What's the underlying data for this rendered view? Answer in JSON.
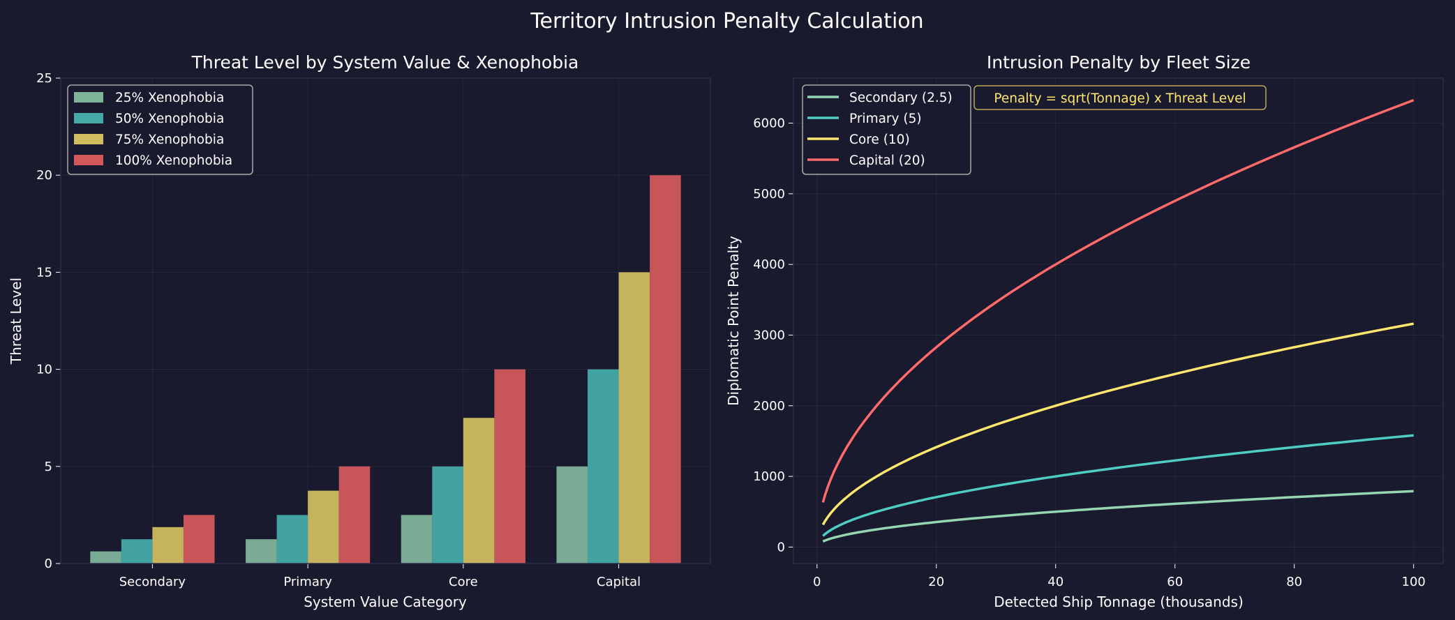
{
  "figure_title": "Territory Intrusion Penalty Calculation",
  "colors": {
    "background": "#1a1a2e",
    "legend_border": "#aaaaaa",
    "annotation": "#ffe66d"
  },
  "chart_data": [
    {
      "type": "bar",
      "title": "Threat Level by System Value & Xenophobia",
      "xlabel": "System Value Category",
      "ylabel": "Threat Level",
      "categories": [
        "Secondary",
        "Primary",
        "Core",
        "Capital"
      ],
      "ylim": [
        0,
        25
      ],
      "yticks": [
        0,
        5,
        10,
        15,
        20,
        25
      ],
      "grid": true,
      "legend_position": "upper-left",
      "series": [
        {
          "name": "25% Xenophobia",
          "color": "#7fb39a",
          "values": [
            0.625,
            1.25,
            2.5,
            5
          ]
        },
        {
          "name": "50% Xenophobia",
          "color": "#45a9a8",
          "values": [
            1.25,
            2.5,
            5,
            10
          ]
        },
        {
          "name": "75% Xenophobia",
          "color": "#cfbd5f",
          "values": [
            1.875,
            3.75,
            7.5,
            15
          ]
        },
        {
          "name": "100% Xenophobia",
          "color": "#d1595c",
          "values": [
            2.5,
            5,
            10,
            20
          ]
        }
      ]
    },
    {
      "type": "line",
      "title": "Intrusion Penalty by Fleet Size",
      "xlabel": "Detected Ship Tonnage (thousands)",
      "ylabel": "Diplomatic Point Penalty",
      "xlim": [
        -3.95,
        104.95
      ],
      "ylim": [
        -233,
        6637
      ],
      "xticks": [
        0,
        20,
        40,
        60,
        80,
        100
      ],
      "yticks": [
        0,
        1000,
        2000,
        3000,
        4000,
        5000,
        6000
      ],
      "grid": true,
      "legend_position": "upper-left",
      "annotation": "Penalty = sqrt(Tonnage) x Threat Level",
      "x": [
        1,
        2,
        3,
        5,
        10,
        15,
        20,
        30,
        40,
        50,
        60,
        70,
        80,
        90,
        100
      ],
      "series": [
        {
          "name": "Secondary (2.5)",
          "color": "#95d5b2",
          "values": [
            79,
            112,
            137,
            177,
            250,
            306,
            354,
            433,
            500,
            559,
            612,
            661,
            707,
            750,
            791
          ]
        },
        {
          "name": "Primary (5)",
          "color": "#4ecdc4",
          "values": [
            158,
            224,
            274,
            354,
            500,
            612,
            707,
            866,
            1000,
            1118,
            1225,
            1323,
            1414,
            1500,
            1581
          ]
        },
        {
          "name": "Core (10)",
          "color": "#ffe66d",
          "values": [
            316,
            447,
            548,
            707,
            1000,
            1225,
            1414,
            1732,
            2000,
            2236,
            2449,
            2646,
            2828,
            3000,
            3162
          ]
        },
        {
          "name": "Capital (20)",
          "color": "#ff6b6b",
          "values": [
            632,
            894,
            1095,
            1414,
            2000,
            2449,
            2828,
            3464,
            4000,
            4472,
            4899,
            5292,
            5657,
            6000,
            6325
          ]
        }
      ]
    }
  ]
}
